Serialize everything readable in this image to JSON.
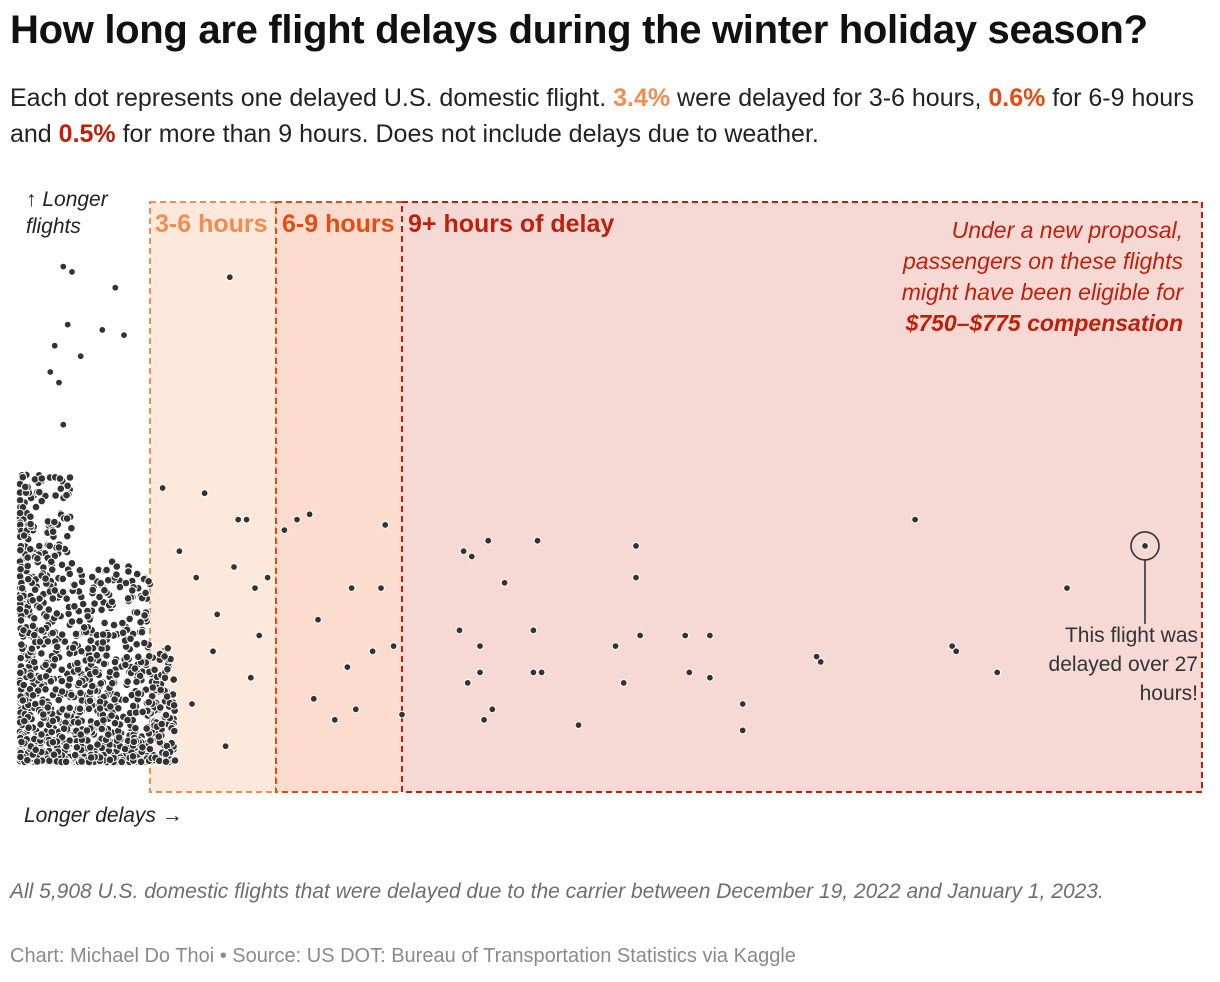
{
  "title": "How long are flight delays during the winter holiday season?",
  "subtitle": {
    "part1": "Each dot represents one delayed U.S. domestic flight. ",
    "pct1": "3.4%",
    "part2": " were delayed for 3-6 hours, ",
    "pct2": "0.6%",
    "part3": " for 6-9 hours and ",
    "pct3": "0.5%",
    "part4": " for more than 9 hours. Does not include delays due to weather."
  },
  "colors": {
    "band_3_6": "#f28d52",
    "band_6_9": "#e84b12",
    "band_9plus": "#c21f0b",
    "dot": "#333333"
  },
  "chart_data": {
    "type": "scatter",
    "title": "How long are flight delays during the winter holiday season?",
    "xlabel": "Longer delays →",
    "ylabel": "↑ Longer flights",
    "xlim": [
      0,
      28.5
    ],
    "ylim": [
      0,
      1
    ],
    "x_unit": "hours of delay",
    "total_flights": 5908,
    "bands": [
      {
        "label": "3-6 hours",
        "from": 3,
        "to": 6,
        "share": "3.4%"
      },
      {
        "label": "6-9 hours",
        "from": 6,
        "to": 9,
        "share": "0.6%"
      },
      {
        "label": "9+ hours of delay",
        "from": 9,
        "to": 28.5,
        "share": "0.5%"
      }
    ],
    "proposal_annotation": {
      "lines": [
        "Under a new proposal,",
        "passengers on these flights",
        "might have been eligible for"
      ],
      "bold": "$750–$775 compensation"
    },
    "highlight_annotation": {
      "x": 27.1,
      "y": 0.41,
      "lines": [
        "This flight was",
        "delayed over 27",
        "hours!"
      ]
    },
    "visible_points": [
      {
        "x": 1.0,
        "y": 0.94
      },
      {
        "x": 1.2,
        "y": 0.93
      },
      {
        "x": 2.2,
        "y": 0.9
      },
      {
        "x": 1.1,
        "y": 0.83
      },
      {
        "x": 1.9,
        "y": 0.82
      },
      {
        "x": 2.4,
        "y": 0.81
      },
      {
        "x": 0.8,
        "y": 0.79
      },
      {
        "x": 1.4,
        "y": 0.77
      },
      {
        "x": 0.7,
        "y": 0.74
      },
      {
        "x": 0.9,
        "y": 0.72
      },
      {
        "x": 1.0,
        "y": 0.64
      },
      {
        "x": 4.9,
        "y": 0.92
      },
      {
        "x": 3.3,
        "y": 0.52
      },
      {
        "x": 4.3,
        "y": 0.51
      },
      {
        "x": 5.1,
        "y": 0.46
      },
      {
        "x": 5.3,
        "y": 0.46
      },
      {
        "x": 5.0,
        "y": 0.37
      },
      {
        "x": 5.5,
        "y": 0.33
      },
      {
        "x": 4.6,
        "y": 0.28
      },
      {
        "x": 3.7,
        "y": 0.4
      },
      {
        "x": 4.1,
        "y": 0.35
      },
      {
        "x": 4.5,
        "y": 0.21
      },
      {
        "x": 5.4,
        "y": 0.16
      },
      {
        "x": 4.0,
        "y": 0.11
      },
      {
        "x": 4.8,
        "y": 0.03
      },
      {
        "x": 5.8,
        "y": 0.35
      },
      {
        "x": 5.6,
        "y": 0.24
      },
      {
        "x": 6.5,
        "y": 0.46
      },
      {
        "x": 6.8,
        "y": 0.47
      },
      {
        "x": 6.2,
        "y": 0.44
      },
      {
        "x": 7.8,
        "y": 0.33
      },
      {
        "x": 8.5,
        "y": 0.33
      },
      {
        "x": 8.6,
        "y": 0.45
      },
      {
        "x": 8.8,
        "y": 0.22
      },
      {
        "x": 7.0,
        "y": 0.27
      },
      {
        "x": 7.4,
        "y": 0.08
      },
      {
        "x": 6.9,
        "y": 0.12
      },
      {
        "x": 7.9,
        "y": 0.1
      },
      {
        "x": 8.3,
        "y": 0.21
      },
      {
        "x": 9.0,
        "y": 0.09
      },
      {
        "x": 7.7,
        "y": 0.18
      },
      {
        "x": 10.5,
        "y": 0.4
      },
      {
        "x": 10.7,
        "y": 0.39
      },
      {
        "x": 11.1,
        "y": 0.42
      },
      {
        "x": 11.5,
        "y": 0.34
      },
      {
        "x": 12.3,
        "y": 0.42
      },
      {
        "x": 14.7,
        "y": 0.41
      },
      {
        "x": 14.7,
        "y": 0.35
      },
      {
        "x": 21.5,
        "y": 0.46
      },
      {
        "x": 25.2,
        "y": 0.33
      },
      {
        "x": 27.1,
        "y": 0.41
      },
      {
        "x": 10.4,
        "y": 0.25
      },
      {
        "x": 10.9,
        "y": 0.22
      },
      {
        "x": 12.2,
        "y": 0.25
      },
      {
        "x": 15.9,
        "y": 0.24
      },
      {
        "x": 16.5,
        "y": 0.24
      },
      {
        "x": 14.8,
        "y": 0.24
      },
      {
        "x": 14.2,
        "y": 0.22
      },
      {
        "x": 22.4,
        "y": 0.22
      },
      {
        "x": 22.5,
        "y": 0.21
      },
      {
        "x": 23.5,
        "y": 0.17
      },
      {
        "x": 10.9,
        "y": 0.17
      },
      {
        "x": 12.2,
        "y": 0.17
      },
      {
        "x": 12.4,
        "y": 0.17
      },
      {
        "x": 16.0,
        "y": 0.17
      },
      {
        "x": 16.5,
        "y": 0.16
      },
      {
        "x": 14.4,
        "y": 0.15
      },
      {
        "x": 19.1,
        "y": 0.2
      },
      {
        "x": 19.2,
        "y": 0.19
      },
      {
        "x": 10.6,
        "y": 0.15
      },
      {
        "x": 11.2,
        "y": 0.1
      },
      {
        "x": 13.3,
        "y": 0.07
      },
      {
        "x": 17.3,
        "y": 0.11
      },
      {
        "x": 17.3,
        "y": 0.06
      },
      {
        "x": 11.0,
        "y": 0.08
      }
    ]
  },
  "axis_labels": {
    "y_line1": "↑ Longer",
    "y_line2": "flights",
    "x": "Longer delays →"
  },
  "footnote": "All 5,908 U.S. domestic flights that were delayed due to the carrier between December 19, 2022 and January 1, 2023.",
  "credit": "Chart: Michael Do Thoi • Source: US DOT: Bureau of Transportation Statistics via Kaggle"
}
